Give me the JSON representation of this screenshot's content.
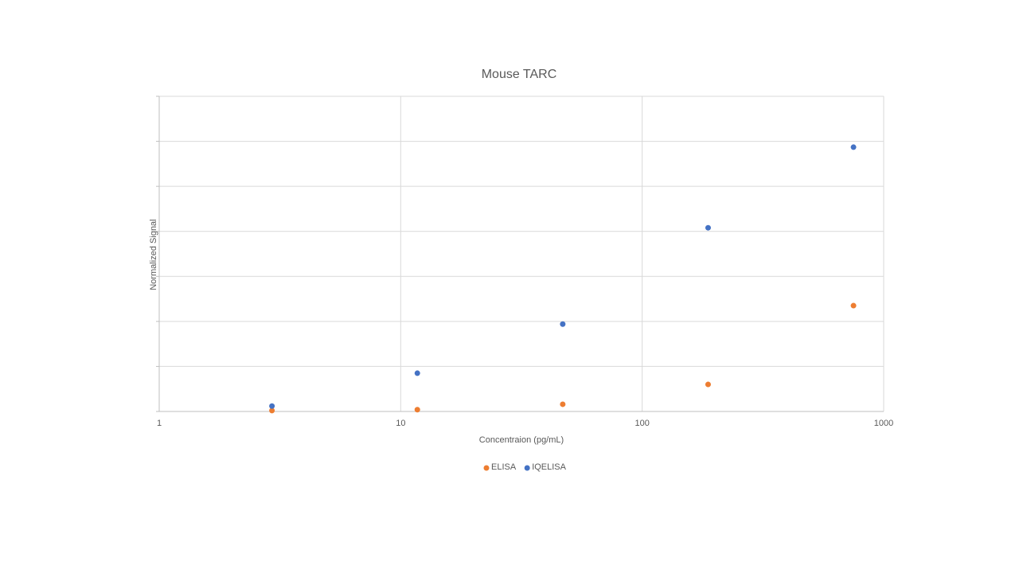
{
  "chart_data": {
    "type": "scatter",
    "title": "Mouse TARC",
    "x_label": "Concentraion (pg/mL)",
    "y_label": "Normalized Signal",
    "xscale": "log",
    "xlim": [
      1,
      1000
    ],
    "xticks": [
      1,
      10,
      100,
      1000
    ],
    "ylim": [
      0,
      7
    ],
    "yticks": [
      0,
      1,
      2,
      3,
      4,
      5,
      6,
      7
    ],
    "y_tick_labels": false,
    "grid": true,
    "legend": "bottom",
    "series": [
      {
        "name": "ELISA",
        "color": "#ed7d31",
        "x": [
          2.93,
          11.72,
          46.88,
          187.5,
          750
        ],
        "values": [
          0.02,
          0.04,
          0.16,
          0.6,
          2.35
        ]
      },
      {
        "name": "IQELISA",
        "color": "#4472c4",
        "x": [
          2.93,
          11.72,
          46.88,
          187.5,
          750
        ],
        "values": [
          0.12,
          0.85,
          1.94,
          4.08,
          5.87
        ]
      }
    ]
  }
}
